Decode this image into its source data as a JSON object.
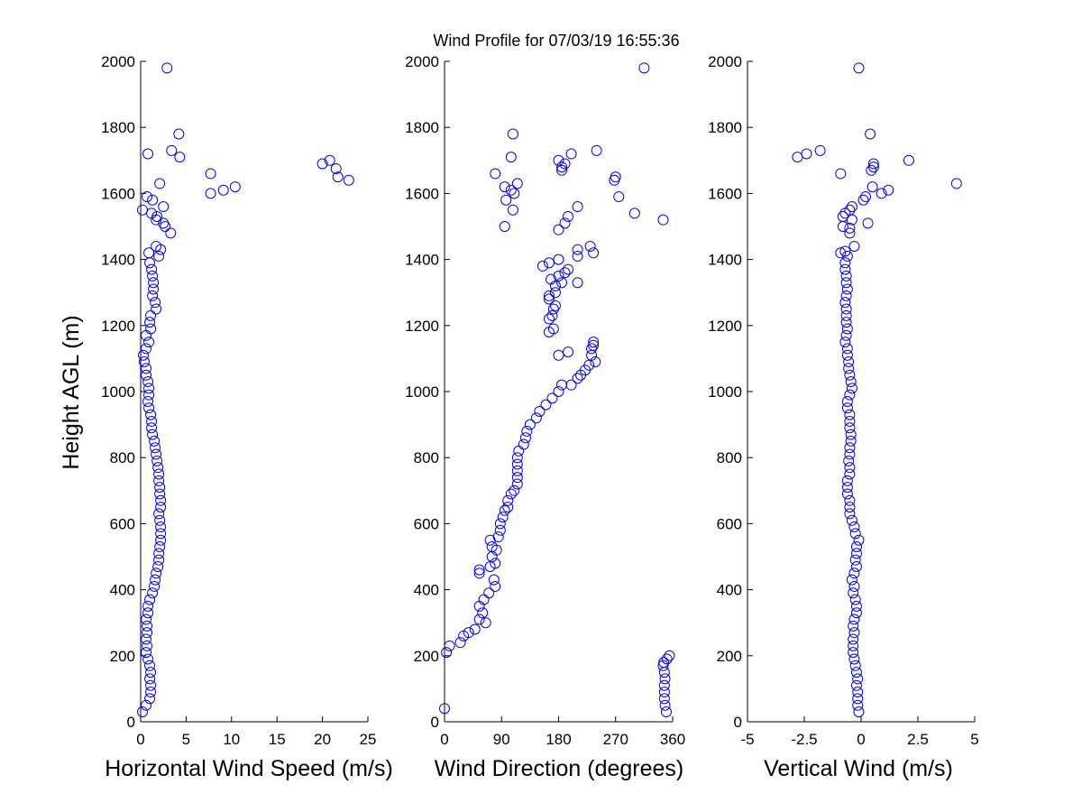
{
  "figure": {
    "title": "Wind Profile for  07/03/19 16:55:36",
    "ylabel": "Height AGL (m)",
    "marker_color": "#0000ff"
  },
  "chart_data": [
    {
      "type": "scatter",
      "name": "speed",
      "xlabel": "Horizontal Wind Speed (m/s)",
      "ylabel": "Height AGL (m)",
      "xlim": [
        0,
        25
      ],
      "ylim": [
        0,
        2000
      ],
      "xticks": [
        0,
        5,
        10,
        15,
        20,
        25
      ],
      "xtick_labels": [
        "0",
        "5",
        "10",
        "15",
        "20",
        "25"
      ],
      "yticks": [
        0,
        200,
        400,
        600,
        800,
        1000,
        1200,
        1400,
        1600,
        1800,
        2000
      ],
      "ytick_labels": [
        "0",
        "200",
        "400",
        "600",
        "800",
        "1000",
        "1200",
        "1400",
        "1600",
        "1800",
        "2000"
      ],
      "points": [
        [
          0.2,
          30
        ],
        [
          0.6,
          50
        ],
        [
          1.0,
          70
        ],
        [
          1.1,
          90
        ],
        [
          1.1,
          110
        ],
        [
          1.0,
          130
        ],
        [
          1.1,
          150
        ],
        [
          1.0,
          170
        ],
        [
          0.8,
          190
        ],
        [
          0.6,
          210
        ],
        [
          0.7,
          230
        ],
        [
          0.6,
          250
        ],
        [
          0.7,
          270
        ],
        [
          0.7,
          290
        ],
        [
          0.6,
          310
        ],
        [
          0.8,
          330
        ],
        [
          0.8,
          350
        ],
        [
          1.0,
          370
        ],
        [
          1.3,
          390
        ],
        [
          1.5,
          410
        ],
        [
          1.6,
          430
        ],
        [
          1.7,
          450
        ],
        [
          1.9,
          470
        ],
        [
          2.0,
          490
        ],
        [
          2.0,
          510
        ],
        [
          2.1,
          530
        ],
        [
          2.2,
          550
        ],
        [
          2.2,
          570
        ],
        [
          2.2,
          590
        ],
        [
          2.1,
          610
        ],
        [
          2.0,
          630
        ],
        [
          2.2,
          650
        ],
        [
          2.2,
          670
        ],
        [
          2.1,
          690
        ],
        [
          2.1,
          710
        ],
        [
          2.0,
          730
        ],
        [
          2.0,
          750
        ],
        [
          1.9,
          770
        ],
        [
          1.8,
          790
        ],
        [
          1.7,
          810
        ],
        [
          1.6,
          830
        ],
        [
          1.5,
          850
        ],
        [
          1.3,
          870
        ],
        [
          1.2,
          890
        ],
        [
          1.2,
          910
        ],
        [
          1.1,
          930
        ],
        [
          0.9,
          950
        ],
        [
          0.8,
          970
        ],
        [
          0.9,
          990
        ],
        [
          0.9,
          1010
        ],
        [
          0.8,
          1030
        ],
        [
          0.6,
          1050
        ],
        [
          0.6,
          1070
        ],
        [
          0.4,
          1090
        ],
        [
          0.3,
          1110
        ],
        [
          0.6,
          1130
        ],
        [
          0.9,
          1150
        ],
        [
          0.6,
          1170
        ],
        [
          1.1,
          1190
        ],
        [
          1.0,
          1210
        ],
        [
          1.1,
          1230
        ],
        [
          1.7,
          1250
        ],
        [
          1.6,
          1270
        ],
        [
          1.3,
          1290
        ],
        [
          1.4,
          1310
        ],
        [
          1.4,
          1330
        ],
        [
          1.3,
          1350
        ],
        [
          1.2,
          1370
        ],
        [
          1.0,
          1390
        ],
        [
          2.0,
          1410
        ],
        [
          0.9,
          1420
        ],
        [
          2.2,
          1430
        ],
        [
          1.7,
          1440
        ],
        [
          3.3,
          1480
        ],
        [
          2.7,
          1500
        ],
        [
          2.5,
          1510
        ],
        [
          1.7,
          1520
        ],
        [
          1.8,
          1530
        ],
        [
          1.2,
          1540
        ],
        [
          0.2,
          1550
        ],
        [
          2.5,
          1560
        ],
        [
          1.3,
          1580
        ],
        [
          0.7,
          1590
        ],
        [
          7.7,
          1600
        ],
        [
          9.1,
          1610
        ],
        [
          10.4,
          1620
        ],
        [
          2.1,
          1630
        ],
        [
          22.9,
          1640
        ],
        [
          21.7,
          1650
        ],
        [
          7.7,
          1660
        ],
        [
          21.5,
          1675
        ],
        [
          20.8,
          1700
        ],
        [
          20.0,
          1690
        ],
        [
          4.3,
          1710
        ],
        [
          0.8,
          1720
        ],
        [
          3.4,
          1730
        ],
        [
          4.2,
          1780
        ],
        [
          2.9,
          1980
        ]
      ]
    },
    {
      "type": "scatter",
      "name": "direction",
      "xlabel": "Wind Direction (degrees)",
      "ylabel": "",
      "xlim": [
        0,
        360
      ],
      "ylim": [
        0,
        2000
      ],
      "xticks": [
        0,
        90,
        180,
        270,
        360
      ],
      "xtick_labels": [
        "0",
        "90",
        "180",
        "270",
        "360"
      ],
      "yticks": [
        0,
        200,
        400,
        600,
        800,
        1000,
        1200,
        1400,
        1600,
        1800,
        2000
      ],
      "ytick_labels": [
        "0",
        "200",
        "400",
        "600",
        "800",
        "1000",
        "1200",
        "1400",
        "1600",
        "1800",
        "2000"
      ],
      "points": [
        [
          0,
          40
        ],
        [
          350,
          30
        ],
        [
          348,
          50
        ],
        [
          347,
          70
        ],
        [
          347,
          90
        ],
        [
          347,
          110
        ],
        [
          348,
          130
        ],
        [
          347,
          150
        ],
        [
          345,
          170
        ],
        [
          346,
          180
        ],
        [
          351,
          190
        ],
        [
          355,
          200
        ],
        [
          3,
          210
        ],
        [
          8,
          230
        ],
        [
          25,
          240
        ],
        [
          30,
          260
        ],
        [
          38,
          270
        ],
        [
          48,
          280
        ],
        [
          55,
          310
        ],
        [
          65,
          300
        ],
        [
          60,
          330
        ],
        [
          55,
          350
        ],
        [
          62,
          370
        ],
        [
          70,
          390
        ],
        [
          80,
          410
        ],
        [
          78,
          430
        ],
        [
          55,
          450
        ],
        [
          55,
          460
        ],
        [
          72,
          470
        ],
        [
          80,
          480
        ],
        [
          75,
          500
        ],
        [
          82,
          520
        ],
        [
          75,
          530
        ],
        [
          72,
          550
        ],
        [
          85,
          560
        ],
        [
          88,
          580
        ],
        [
          88,
          600
        ],
        [
          92,
          620
        ],
        [
          95,
          640
        ],
        [
          100,
          650
        ],
        [
          100,
          670
        ],
        [
          105,
          690
        ],
        [
          110,
          700
        ],
        [
          115,
          720
        ],
        [
          115,
          740
        ],
        [
          115,
          760
        ],
        [
          115,
          780
        ],
        [
          115,
          800
        ],
        [
          117,
          820
        ],
        [
          125,
          840
        ],
        [
          128,
          860
        ],
        [
          130,
          880
        ],
        [
          135,
          900
        ],
        [
          145,
          920
        ],
        [
          150,
          940
        ],
        [
          160,
          960
        ],
        [
          170,
          980
        ],
        [
          180,
          1000
        ],
        [
          185,
          1020
        ],
        [
          200,
          1020
        ],
        [
          210,
          1040
        ],
        [
          215,
          1050
        ],
        [
          222,
          1065
        ],
        [
          228,
          1080
        ],
        [
          238,
          1090
        ],
        [
          232,
          1110
        ],
        [
          232,
          1130
        ],
        [
          235,
          1140
        ],
        [
          235,
          1150
        ],
        [
          180,
          1110
        ],
        [
          195,
          1120
        ],
        [
          165,
          1180
        ],
        [
          172,
          1190
        ],
        [
          165,
          1220
        ],
        [
          170,
          1230
        ],
        [
          172,
          1250
        ],
        [
          175,
          1260
        ],
        [
          165,
          1280
        ],
        [
          165,
          1290
        ],
        [
          175,
          1300
        ],
        [
          175,
          1320
        ],
        [
          185,
          1330
        ],
        [
          210,
          1330
        ],
        [
          168,
          1340
        ],
        [
          180,
          1350
        ],
        [
          190,
          1360
        ],
        [
          195,
          1370
        ],
        [
          155,
          1380
        ],
        [
          165,
          1390
        ],
        [
          180,
          1400
        ],
        [
          210,
          1410
        ],
        [
          235,
          1420
        ],
        [
          210,
          1430
        ],
        [
          230,
          1440
        ],
        [
          180,
          1490
        ],
        [
          95,
          1500
        ],
        [
          190,
          1510
        ],
        [
          195,
          1530
        ],
        [
          345,
          1520
        ],
        [
          300,
          1540
        ],
        [
          108,
          1550
        ],
        [
          210,
          1560
        ],
        [
          97,
          1580
        ],
        [
          275,
          1590
        ],
        [
          95,
          1620
        ],
        [
          110,
          1600
        ],
        [
          105,
          1610
        ],
        [
          115,
          1630
        ],
        [
          268,
          1640
        ],
        [
          270,
          1650
        ],
        [
          80,
          1660
        ],
        [
          185,
          1670
        ],
        [
          185,
          1680
        ],
        [
          190,
          1690
        ],
        [
          180,
          1700
        ],
        [
          105,
          1710
        ],
        [
          200,
          1720
        ],
        [
          240,
          1730
        ],
        [
          108,
          1780
        ],
        [
          315,
          1980
        ]
      ]
    },
    {
      "type": "scatter",
      "name": "vertical",
      "xlabel": "Vertical Wind (m/s)",
      "ylabel": "",
      "xlim": [
        -5,
        5
      ],
      "ylim": [
        0,
        2000
      ],
      "xticks": [
        -5,
        -2.5,
        0,
        2.5,
        5
      ],
      "xtick_labels": [
        "-5",
        "-2.5",
        "0",
        "2.5",
        "5"
      ],
      "yticks": [
        0,
        200,
        400,
        600,
        800,
        1000,
        1200,
        1400,
        1600,
        1800,
        2000
      ],
      "ytick_labels": [
        "0",
        "200",
        "400",
        "600",
        "800",
        "1000",
        "1200",
        "1400",
        "1600",
        "1800",
        "2000"
      ],
      "points": [
        [
          -0.1,
          30
        ],
        [
          -0.15,
          50
        ],
        [
          -0.15,
          70
        ],
        [
          -0.15,
          90
        ],
        [
          -0.2,
          110
        ],
        [
          -0.15,
          130
        ],
        [
          -0.2,
          150
        ],
        [
          -0.25,
          170
        ],
        [
          -0.3,
          190
        ],
        [
          -0.35,
          210
        ],
        [
          -0.35,
          230
        ],
        [
          -0.35,
          250
        ],
        [
          -0.3,
          270
        ],
        [
          -0.35,
          290
        ],
        [
          -0.3,
          310
        ],
        [
          -0.2,
          330
        ],
        [
          -0.2,
          350
        ],
        [
          -0.25,
          370
        ],
        [
          -0.35,
          390
        ],
        [
          -0.3,
          410
        ],
        [
          -0.4,
          430
        ],
        [
          -0.3,
          450
        ],
        [
          -0.2,
          470
        ],
        [
          -0.25,
          490
        ],
        [
          -0.2,
          510
        ],
        [
          -0.2,
          530
        ],
        [
          -0.1,
          550
        ],
        [
          -0.25,
          570
        ],
        [
          -0.3,
          590
        ],
        [
          -0.4,
          610
        ],
        [
          -0.5,
          630
        ],
        [
          -0.5,
          650
        ],
        [
          -0.5,
          670
        ],
        [
          -0.6,
          690
        ],
        [
          -0.6,
          710
        ],
        [
          -0.6,
          730
        ],
        [
          -0.5,
          750
        ],
        [
          -0.5,
          770
        ],
        [
          -0.55,
          790
        ],
        [
          -0.5,
          810
        ],
        [
          -0.5,
          830
        ],
        [
          -0.45,
          850
        ],
        [
          -0.45,
          870
        ],
        [
          -0.5,
          890
        ],
        [
          -0.5,
          910
        ],
        [
          -0.5,
          930
        ],
        [
          -0.6,
          950
        ],
        [
          -0.6,
          970
        ],
        [
          -0.5,
          990
        ],
        [
          -0.4,
          1010
        ],
        [
          -0.45,
          1030
        ],
        [
          -0.5,
          1050
        ],
        [
          -0.55,
          1070
        ],
        [
          -0.55,
          1090
        ],
        [
          -0.6,
          1110
        ],
        [
          -0.6,
          1130
        ],
        [
          -0.7,
          1150
        ],
        [
          -0.65,
          1170
        ],
        [
          -0.6,
          1190
        ],
        [
          -0.65,
          1210
        ],
        [
          -0.65,
          1230
        ],
        [
          -0.65,
          1250
        ],
        [
          -0.7,
          1270
        ],
        [
          -0.65,
          1290
        ],
        [
          -0.6,
          1310
        ],
        [
          -0.65,
          1330
        ],
        [
          -0.65,
          1350
        ],
        [
          -0.7,
          1370
        ],
        [
          -0.7,
          1390
        ],
        [
          -0.6,
          1410
        ],
        [
          -0.9,
          1420
        ],
        [
          -0.7,
          1425
        ],
        [
          -0.3,
          1440
        ],
        [
          -0.5,
          1480
        ],
        [
          -0.5,
          1495
        ],
        [
          -0.8,
          1500
        ],
        [
          0.3,
          1510
        ],
        [
          -0.4,
          1520
        ],
        [
          -0.8,
          1530
        ],
        [
          -0.7,
          1540
        ],
        [
          -0.5,
          1550
        ],
        [
          -0.4,
          1560
        ],
        [
          0.1,
          1580
        ],
        [
          0.2,
          1590
        ],
        [
          0.9,
          1600
        ],
        [
          1.2,
          1610
        ],
        [
          0.5,
          1620
        ],
        [
          4.2,
          1630
        ],
        [
          -0.9,
          1660
        ],
        [
          0.45,
          1670
        ],
        [
          0.55,
          1680
        ],
        [
          0.55,
          1690
        ],
        [
          2.1,
          1700
        ],
        [
          -2.8,
          1710
        ],
        [
          -2.4,
          1720
        ],
        [
          -1.8,
          1730
        ],
        [
          0.4,
          1780
        ],
        [
          -0.1,
          1980
        ]
      ]
    }
  ]
}
